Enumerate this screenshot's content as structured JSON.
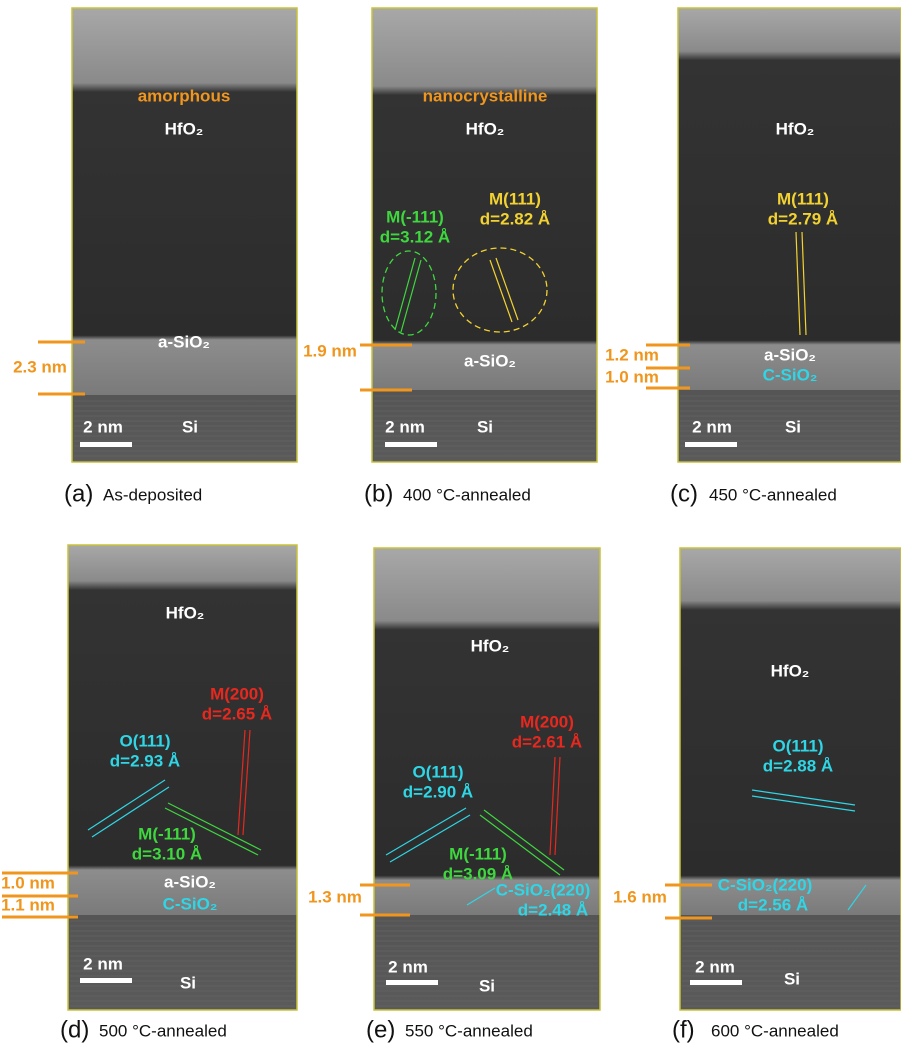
{
  "panels": [
    {
      "caption_label": "(a)",
      "caption": "As-deposited",
      "phase": "amorphous",
      "top_layer": "HfO₂",
      "interface": [
        "a-SiO₂"
      ],
      "substrate": "Si",
      "scale_bar": "2 nm",
      "thickness": [
        "2.3 nm"
      ],
      "annotations": []
    },
    {
      "caption_label": "(b)",
      "caption": "400 °C-annealed",
      "phase": "nanocrystalline",
      "top_layer": "HfO₂",
      "interface": [
        "a-SiO₂"
      ],
      "substrate": "Si",
      "scale_bar": "2 nm",
      "thickness": [
        "1.9 nm"
      ],
      "annotations": [
        {
          "text": "M(-111)",
          "color": "#3ed83e"
        },
        {
          "text": "d=3.12 Å",
          "color": "#3ed83e"
        },
        {
          "text": "M(111)",
          "color": "#f2d230"
        },
        {
          "text": "d=2.82 Å",
          "color": "#f2d230"
        }
      ]
    },
    {
      "caption_label": "(c)",
      "caption": "450 °C-annealed",
      "top_layer": "HfO₂",
      "interface": [
        "a-SiO₂",
        "C-SiO₂"
      ],
      "substrate": "Si",
      "scale_bar": "2 nm",
      "thickness": [
        "1.2 nm",
        "1.0 nm"
      ],
      "annotations": [
        {
          "text": "M(111)",
          "color": "#f2d230"
        },
        {
          "text": "d=2.79 Å",
          "color": "#f2d230"
        }
      ]
    },
    {
      "caption_label": "(d)",
      "caption": "500 °C-annealed",
      "top_layer": "HfO₂",
      "interface": [
        "a-SiO₂",
        "C-SiO₂"
      ],
      "substrate": "Si",
      "scale_bar": "2 nm",
      "thickness": [
        "1.0 nm",
        "1.1 nm"
      ],
      "annotations": [
        {
          "text": "M(200)",
          "color": "#e8281e"
        },
        {
          "text": "d=2.65 Å",
          "color": "#e8281e"
        },
        {
          "text": "O(111)",
          "color": "#2ed6e6"
        },
        {
          "text": "d=2.93 Å",
          "color": "#2ed6e6"
        },
        {
          "text": "M(-111)",
          "color": "#3ed83e"
        },
        {
          "text": "d=3.10 Å",
          "color": "#3ed83e"
        }
      ]
    },
    {
      "caption_label": "(e)",
      "caption": "550 °C-annealed",
      "top_layer": "HfO₂",
      "interface": [],
      "substrate": "Si",
      "scale_bar": "2 nm",
      "thickness": [
        "1.3 nm"
      ],
      "annotations": [
        {
          "text": "M(200)",
          "color": "#e8281e"
        },
        {
          "text": "d=2.61 Å",
          "color": "#e8281e"
        },
        {
          "text": "O(111)",
          "color": "#2ed6e6"
        },
        {
          "text": "d=2.90 Å",
          "color": "#2ed6e6"
        },
        {
          "text": "M(-111)",
          "color": "#3ed83e"
        },
        {
          "text": "d=3.09 Å",
          "color": "#3ed83e"
        },
        {
          "text": "C-SiO₂(220)",
          "color": "#2ed6e6"
        },
        {
          "text": "d=2.48 Å",
          "color": "#2ed6e6"
        }
      ]
    },
    {
      "caption_label": "(f)",
      "caption": "600 °C-annealed",
      "top_layer": "HfO₂",
      "interface": [],
      "substrate": "Si",
      "scale_bar": "2 nm",
      "thickness": [
        "1.6 nm"
      ],
      "annotations": [
        {
          "text": "O(111)",
          "color": "#2ed6e6"
        },
        {
          "text": "d=2.88 Å",
          "color": "#2ed6e6"
        },
        {
          "text": "C-SiO₂(220)",
          "color": "#2ed6e6"
        },
        {
          "text": "d=2.56 Å",
          "color": "#2ed6e6"
        }
      ]
    }
  ]
}
